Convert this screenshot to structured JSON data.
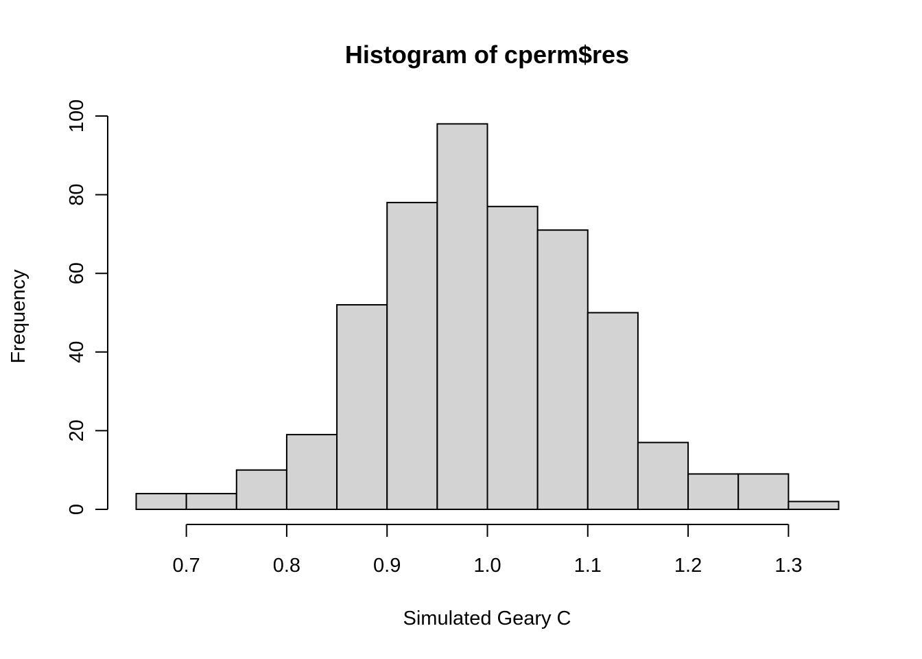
{
  "chart_data": {
    "type": "bar",
    "title": "Histogram of cperm$res",
    "xlabel": "Simulated Geary C",
    "ylabel": "Frequency",
    "bins": [
      {
        "x0": 0.65,
        "x1": 0.7,
        "count": 4
      },
      {
        "x0": 0.7,
        "x1": 0.75,
        "count": 4
      },
      {
        "x0": 0.75,
        "x1": 0.8,
        "count": 10
      },
      {
        "x0": 0.8,
        "x1": 0.85,
        "count": 19
      },
      {
        "x0": 0.85,
        "x1": 0.9,
        "count": 52
      },
      {
        "x0": 0.9,
        "x1": 0.95,
        "count": 78
      },
      {
        "x0": 0.95,
        "x1": 1.0,
        "count": 98
      },
      {
        "x0": 1.0,
        "x1": 1.05,
        "count": 77
      },
      {
        "x0": 1.05,
        "x1": 1.1,
        "count": 71
      },
      {
        "x0": 1.1,
        "x1": 1.15,
        "count": 50
      },
      {
        "x0": 1.15,
        "x1": 1.2,
        "count": 17
      },
      {
        "x0": 1.2,
        "x1": 1.25,
        "count": 9
      },
      {
        "x0": 1.25,
        "x1": 1.3,
        "count": 9
      },
      {
        "x0": 1.3,
        "x1": 1.35,
        "count": 2
      }
    ],
    "xlim": [
      0.65,
      1.35
    ],
    "ylim": [
      0,
      100
    ],
    "x_ticks": [
      {
        "value": 0.7,
        "label": "0.7"
      },
      {
        "value": 0.8,
        "label": "0.8"
      },
      {
        "value": 0.9,
        "label": "0.9"
      },
      {
        "value": 1.0,
        "label": "1.0"
      },
      {
        "value": 1.1,
        "label": "1.1"
      },
      {
        "value": 1.2,
        "label": "1.2"
      },
      {
        "value": 1.3,
        "label": "1.3"
      }
    ],
    "y_ticks": [
      {
        "value": 0,
        "label": "0"
      },
      {
        "value": 20,
        "label": "20"
      },
      {
        "value": 40,
        "label": "40"
      },
      {
        "value": 60,
        "label": "60"
      },
      {
        "value": 80,
        "label": "80"
      },
      {
        "value": 100,
        "label": "100"
      }
    ],
    "bar_fill": "#d3d3d3",
    "bar_stroke": "#000000",
    "grid": false,
    "legend": "none"
  }
}
